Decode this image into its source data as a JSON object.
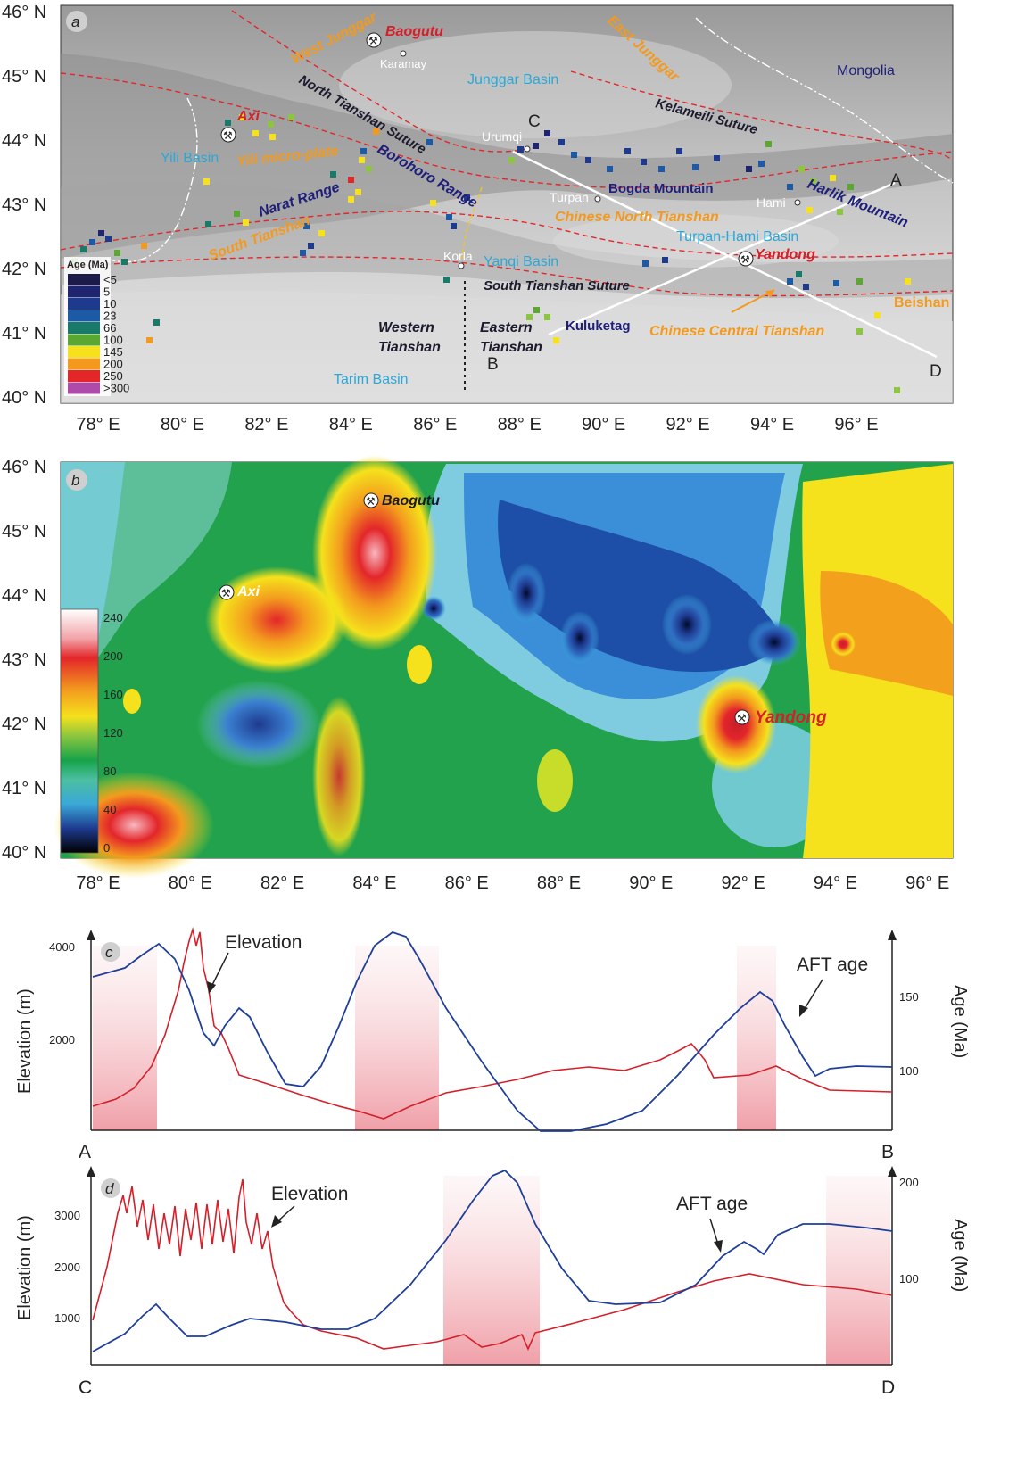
{
  "panel_a": {
    "tag": "a",
    "lat_labels": [
      "46° N",
      "45° N",
      "44° N",
      "43° N",
      "42° N",
      "41° N",
      "40° N"
    ],
    "lon_labels": [
      "78° E",
      "80° E",
      "82° E",
      "84° E",
      "86° E",
      "88° E",
      "90° E",
      "92° E",
      "94° E",
      "96° E"
    ],
    "labels": {
      "west_junggar": "West Junggar",
      "baogutu": "Baogutu",
      "karamay": "Karamay",
      "junggar_basin": "Junggar Basin",
      "east_junggar": "East Junggar",
      "mongolia": "Mongolia",
      "north_tianshan_suture": "North Tianshan Suture",
      "kelameili_suture": "Kelameili Suture",
      "axi": "Axi",
      "urumqi": "Urumqi",
      "c": "C",
      "yili_basin": "Yili  Basin",
      "yili_microplate": "Yili micro-plate",
      "borohoro": "Borohoro Range",
      "bogda": "Bogda Mountain",
      "turpan": "Turpan",
      "hami": "Hami",
      "harlik": "Harlik Mountain",
      "a": "A",
      "narat": "Narat Range",
      "chinese_north_tianshan": "Chinese North Tianshan",
      "turpan_hami": "Turpan-Hami Basin",
      "south_tianshan": "South Tianshan",
      "korla": "Korla",
      "yanqi": "Yanqi  Basin",
      "yandong": "Yandong",
      "south_tianshan_suture": "South Tianshan Suture",
      "beishan": "Beishan",
      "western_tianshan_1": "Western",
      "western_tianshan_2": "Tianshan",
      "eastern_tianshan_1": "Eastern",
      "eastern_tianshan_2": "Tianshan",
      "kuluketag": "Kuluketag",
      "chinese_central_tianshan": "Chinese Central Tianshan",
      "b": "B",
      "d": "D",
      "tarim_basin": "Tarim  Basin"
    },
    "legend": {
      "title": "Age (Ma)",
      "items": [
        {
          "label": "<5",
          "color": "#1c1a4a"
        },
        {
          "label": "5",
          "color": "#1f2470"
        },
        {
          "label": "10",
          "color": "#1e3a8f"
        },
        {
          "label": "23",
          "color": "#1c5aa8"
        },
        {
          "label": "66",
          "color": "#1a7a6a"
        },
        {
          "label": "100",
          "color": "#5aa832"
        },
        {
          "label": "145",
          "color": "#f5e11c"
        },
        {
          "label": "200",
          "color": "#f39a1e"
        },
        {
          "label": "250",
          "color": "#e3262a"
        },
        {
          "label": ">300",
          "color": "#b04aa8"
        }
      ]
    }
  },
  "panel_b": {
    "tag": "b",
    "lat_labels": [
      "46° N",
      "45° N",
      "44° N",
      "43° N",
      "42° N",
      "41° N",
      "40° N"
    ],
    "lon_labels": [
      "78° E",
      "80° E",
      "82° E",
      "84° E",
      "86° E",
      "88° E",
      "90° E",
      "92° E",
      "94° E",
      "96° E"
    ],
    "labels": {
      "baogutu": "Baogutu",
      "axi": "Axi",
      "yandong": "Yandong"
    },
    "legend_ticks": [
      "240",
      "200",
      "160",
      "120",
      "80",
      "40",
      "0"
    ]
  },
  "chart_data": [
    {
      "type": "line",
      "panel": "c",
      "left_ylabel": "Elevation (m)",
      "right_ylabel": "Age (Ma)",
      "left_ticks": [
        "4000",
        "2000"
      ],
      "right_ticks": [
        "150",
        "100"
      ],
      "start_label": "A",
      "end_label": "B",
      "annotations": [
        "Elevation",
        "AFT age"
      ],
      "series": [
        {
          "name": "Elevation",
          "color": "#d4202a"
        },
        {
          "name": "AFT age",
          "color": "#1f3f99"
        }
      ]
    },
    {
      "type": "line",
      "panel": "d",
      "left_ylabel": "Elevation (m)",
      "right_ylabel": "Age (Ma)",
      "left_ticks": [
        "3000",
        "2000",
        "1000"
      ],
      "right_ticks": [
        "200",
        "100"
      ],
      "start_label": "C",
      "end_label": "D",
      "annotations": [
        "Elevation",
        "AFT age"
      ],
      "series": [
        {
          "name": "Elevation",
          "color": "#d4202a"
        },
        {
          "name": "AFT age",
          "color": "#1f3f99"
        }
      ]
    }
  ]
}
